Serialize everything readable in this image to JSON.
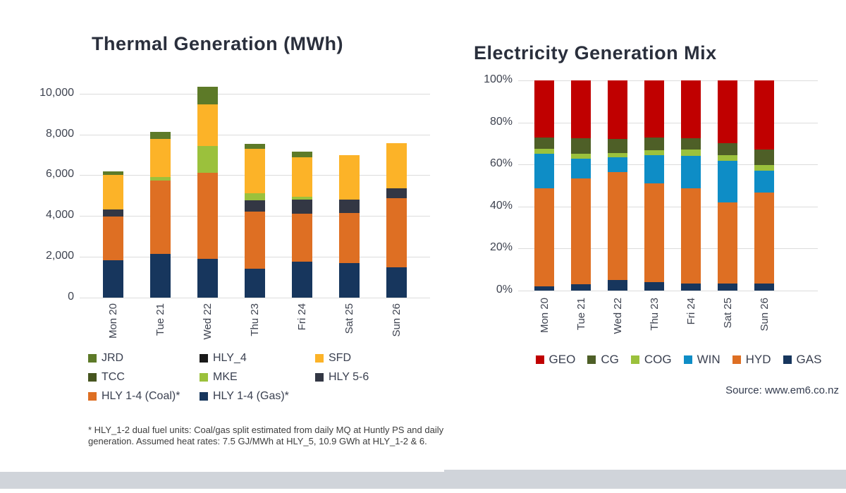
{
  "page": {
    "background": "#FFFFFF",
    "footer_color": "#D0D4DA"
  },
  "chart_data": [
    {
      "id": "thermal-generation",
      "type": "bar",
      "stacked": true,
      "title": "Thermal Generation (MWh)",
      "xlabel": "",
      "ylabel": "",
      "units": "MWh",
      "ylim": [
        0,
        10440
      ],
      "grid": true,
      "legend_position": "bottom",
      "categories": [
        "Mon 20",
        "Tue 21",
        "Wed 22",
        "Thu 23",
        "Fri 24",
        "Sat 25",
        "Sun 26"
      ],
      "y_ticks": [
        {
          "value": 0,
          "label": "0"
        },
        {
          "value": 2000,
          "label": "2,000"
        },
        {
          "value": 4000,
          "label": "4,000"
        },
        {
          "value": 6000,
          "label": "6,000"
        },
        {
          "value": 8000,
          "label": "8,000"
        },
        {
          "value": 10000,
          "label": "10,000"
        }
      ],
      "series": [
        {
          "name": "HLY 1-4 (Gas)*",
          "color": "#17365D",
          "values": [
            1820,
            2130,
            1900,
            1410,
            1750,
            1710,
            1500
          ]
        },
        {
          "name": "HLY 1-4 (Coal)*",
          "color": "#DE6F23",
          "values": [
            2160,
            3610,
            4230,
            2820,
            2350,
            2440,
            3370
          ]
        },
        {
          "name": "HLY 5-6",
          "color": "#333744",
          "values": [
            330,
            0,
            0,
            540,
            690,
            670,
            480
          ]
        },
        {
          "name": "MKE",
          "color": "#9BC13C",
          "values": [
            0,
            180,
            1320,
            345,
            165,
            0,
            0
          ]
        },
        {
          "name": "TCC",
          "color": "#46551F",
          "values": [
            0,
            0,
            0,
            0,
            0,
            0,
            0
          ]
        },
        {
          "name": "SFD",
          "color": "#FCB328",
          "values": [
            1690,
            1850,
            2020,
            2170,
            1930,
            2180,
            2210
          ]
        },
        {
          "name": "HLY_4",
          "color": "#1A1A1A",
          "values": [
            0,
            0,
            0,
            0,
            0,
            0,
            0
          ]
        },
        {
          "name": "JRD",
          "color": "#5D7A28",
          "values": [
            200,
            360,
            860,
            265,
            290,
            0,
            0
          ]
        }
      ],
      "legend_order": [
        "JRD",
        "HLY_4",
        "SFD",
        "TCC",
        "MKE",
        "HLY 5-6",
        "HLY 1-4 (Coal)*",
        "HLY 1-4 (Gas)*"
      ],
      "footnote": "* HLY_1-2 dual fuel units: Coal/gas split estimated from daily MQ at Huntly PS and daily generation. Assumed heat rates: 7.5 GJ/MWh at HLY_5, 10.9 GWh at HLY_1-2 & 6."
    },
    {
      "id": "electricity-generation-mix",
      "type": "bar",
      "stacked": true,
      "title": "Electricity Generation Mix",
      "xlabel": "",
      "ylabel": "",
      "units": "%",
      "ylim": [
        0,
        100
      ],
      "grid": true,
      "legend_position": "bottom",
      "categories": [
        "Mon 20",
        "Tue 21",
        "Wed 22",
        "Thu 23",
        "Fri 24",
        "Sat 25",
        "Sun 26"
      ],
      "y_ticks": [
        {
          "value": 0,
          "label": "0%"
        },
        {
          "value": 20,
          "label": "20%"
        },
        {
          "value": 40,
          "label": "40%"
        },
        {
          "value": 60,
          "label": "60%"
        },
        {
          "value": 80,
          "label": "80%"
        },
        {
          "value": 100,
          "label": "100%"
        }
      ],
      "series": [
        {
          "name": "GAS",
          "color": "#17365D",
          "values": [
            2.0,
            3.0,
            5.0,
            4.0,
            3.5,
            3.5,
            3.5
          ]
        },
        {
          "name": "HYD",
          "color": "#DE6F23",
          "values": [
            46.5,
            50.5,
            51.5,
            47.0,
            45.0,
            38.5,
            43.0
          ]
        },
        {
          "name": "WIN",
          "color": "#0E8DC6",
          "values": [
            16.5,
            9.2,
            6.9,
            13.6,
            15.7,
            19.8,
            10.6
          ]
        },
        {
          "name": "COG",
          "color": "#9BC13C",
          "values": [
            2.5,
            2.4,
            1.9,
            2.2,
            2.9,
            2.8,
            2.5
          ]
        },
        {
          "name": "CG",
          "color": "#4E5F27",
          "values": [
            5.5,
            7.5,
            6.7,
            6.1,
            5.3,
            5.5,
            7.5
          ]
        },
        {
          "name": "GEO",
          "color": "#C00000",
          "values": [
            27.0,
            27.4,
            28.0,
            27.1,
            27.6,
            29.9,
            32.9
          ]
        }
      ],
      "legend_order": [
        "GEO",
        "CG",
        "COG",
        "WIN",
        "HYD",
        "GAS"
      ],
      "source": "Source: www.em6.co.nz"
    }
  ]
}
